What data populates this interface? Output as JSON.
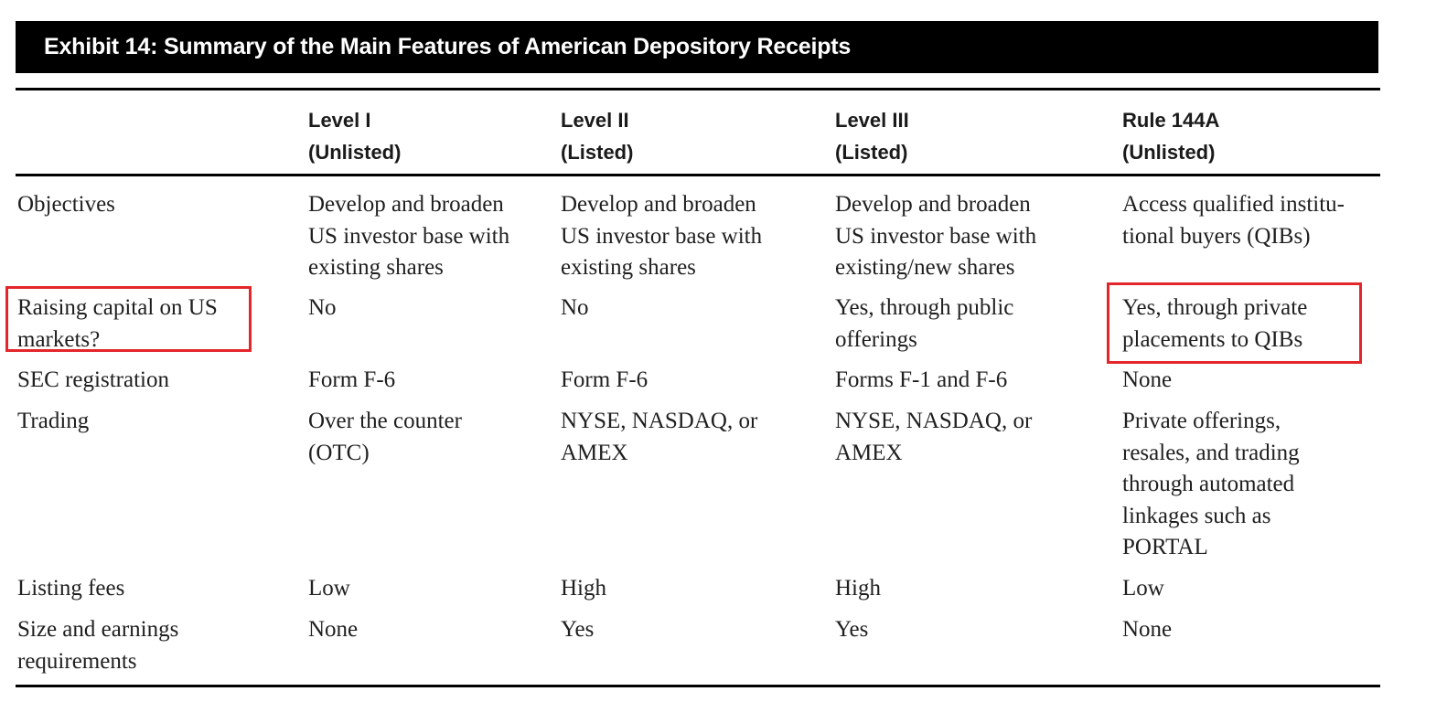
{
  "exhibit": {
    "title": "Exhibit 14: Summary of the Main Features of American Depository Receipts"
  },
  "table": {
    "columns": [
      {
        "line1": "",
        "line2": ""
      },
      {
        "line1": "Level I",
        "line2": "(Unlisted)"
      },
      {
        "line1": "Level II",
        "line2": "(Listed)"
      },
      {
        "line1": "Level III",
        "line2": "(Listed)"
      },
      {
        "line1": "Rule 144A",
        "line2": "(Unlisted)"
      }
    ],
    "rows": [
      {
        "label": [
          "Objectives"
        ],
        "cells": [
          [
            "Develop and broaden",
            "US investor base with",
            "existing shares"
          ],
          [
            "Develop and broaden",
            "US investor base with",
            "existing shares"
          ],
          [
            "Develop and broaden",
            "US investor base with",
            "existing/new shares"
          ],
          [
            "Access qualified institu-",
            "tional buyers (QIBs)"
          ]
        ]
      },
      {
        "label": [
          "Raising capital on US",
          "markets?"
        ],
        "cells": [
          [
            "No"
          ],
          [
            "No"
          ],
          [
            "Yes, through public",
            "offerings"
          ],
          [
            "Yes, through private",
            "placements to QIBs"
          ]
        ]
      },
      {
        "label": [
          "SEC registration"
        ],
        "cells": [
          [
            "Form F-6"
          ],
          [
            "Form F-6"
          ],
          [
            "Forms F-1 and F-6"
          ],
          [
            "None"
          ]
        ]
      },
      {
        "label": [
          "Trading"
        ],
        "cells": [
          [
            "Over the counter",
            "(OTC)"
          ],
          [
            "NYSE, NASDAQ, or",
            "AMEX"
          ],
          [
            "NYSE, NASDAQ, or",
            "AMEX"
          ],
          [
            "Private offerings,",
            "resales, and trading",
            "through automated",
            "linkages such as",
            "PORTAL"
          ]
        ]
      },
      {
        "label": [
          "Listing fees"
        ],
        "cells": [
          [
            "Low"
          ],
          [
            "High"
          ],
          [
            "High"
          ],
          [
            "Low"
          ]
        ]
      },
      {
        "label": [
          "Size and earnings",
          "requirements"
        ],
        "cells": [
          [
            "None"
          ],
          [
            "Yes"
          ],
          [
            "Yes"
          ],
          [
            "None"
          ]
        ]
      }
    ]
  },
  "highlights": {
    "color": "#e3262b",
    "targets": [
      "row-label-raising-capital",
      "cell-raising-capital-rule144a"
    ]
  }
}
